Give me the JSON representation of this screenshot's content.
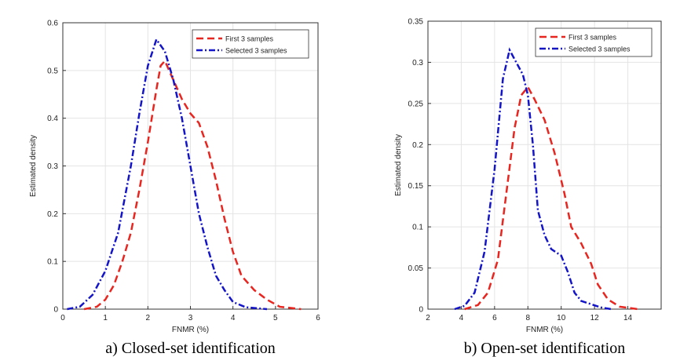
{
  "chart_data": [
    {
      "type": "line",
      "xlabel": "FNMR (%)",
      "ylabel": "Estimated density",
      "caption": "a) Closed-set identification",
      "xlim": [
        0,
        6
      ],
      "xticks": [
        0,
        1,
        2,
        3,
        4,
        5,
        6
      ],
      "ylim": [
        0,
        0.6
      ],
      "yticks": [
        0,
        0.1,
        0.2,
        0.3,
        0.4,
        0.5,
        0.6
      ],
      "grid": true,
      "legend": "upper-right",
      "series": [
        {
          "name": "First 3 samples",
          "color": "#e8251f",
          "dash": "dashed",
          "x": [
            0.5,
            0.8,
            1.0,
            1.2,
            1.4,
            1.6,
            1.8,
            2.0,
            2.2,
            2.3,
            2.4,
            2.6,
            2.8,
            3.0,
            3.2,
            3.4,
            3.6,
            3.8,
            4.0,
            4.2,
            4.5,
            4.8,
            5.1,
            5.6
          ],
          "values": [
            0,
            0.005,
            0.02,
            0.05,
            0.1,
            0.16,
            0.25,
            0.35,
            0.46,
            0.51,
            0.52,
            0.48,
            0.44,
            0.41,
            0.39,
            0.34,
            0.27,
            0.19,
            0.12,
            0.07,
            0.04,
            0.02,
            0.005,
            0
          ]
        },
        {
          "name": "Selected 3 samples",
          "color": "#1414c8",
          "dash": "dashdot",
          "x": [
            0.1,
            0.4,
            0.7,
            1.0,
            1.3,
            1.6,
            1.8,
            2.0,
            2.2,
            2.4,
            2.6,
            2.8,
            3.0,
            3.2,
            3.4,
            3.6,
            3.8,
            4.0,
            4.3,
            4.8
          ],
          "values": [
            0,
            0.005,
            0.03,
            0.08,
            0.16,
            0.3,
            0.41,
            0.51,
            0.565,
            0.54,
            0.48,
            0.4,
            0.3,
            0.2,
            0.13,
            0.07,
            0.04,
            0.015,
            0.004,
            0
          ]
        }
      ]
    },
    {
      "type": "line",
      "xlabel": "FNMR (%)",
      "ylabel": "Estimated density",
      "caption": "b) Open-set identification",
      "xlim": [
        2,
        16
      ],
      "xticks": [
        2,
        4,
        6,
        8,
        10,
        12,
        14
      ],
      "ylim": [
        0,
        0.35
      ],
      "yticks": [
        0,
        0.05,
        0.1,
        0.15,
        0.2,
        0.25,
        0.3,
        0.35
      ],
      "grid": true,
      "legend": "upper-right",
      "series": [
        {
          "name": "First 3 samples",
          "color": "#e8251f",
          "dash": "dashed",
          "x": [
            4.2,
            5,
            5.6,
            6.2,
            6.7,
            7.2,
            7.6,
            8.0,
            8.4,
            9.0,
            9.6,
            10.2,
            10.6,
            11.2,
            11.8,
            12.2,
            12.8,
            13.5,
            14.6
          ],
          "values": [
            0,
            0.005,
            0.02,
            0.06,
            0.14,
            0.22,
            0.26,
            0.27,
            0.255,
            0.23,
            0.19,
            0.14,
            0.1,
            0.08,
            0.055,
            0.03,
            0.012,
            0.003,
            0
          ]
        },
        {
          "name": "Selected 3 samples",
          "color": "#1414c8",
          "dash": "dashdot",
          "x": [
            3.6,
            4.2,
            4.8,
            5.4,
            6.0,
            6.5,
            6.9,
            7.3,
            7.7,
            8.0,
            8.3,
            8.6,
            9.0,
            9.4,
            10.0,
            10.4,
            10.8,
            11.2,
            11.8,
            12.4,
            13.0
          ],
          "values": [
            0,
            0.004,
            0.02,
            0.07,
            0.17,
            0.28,
            0.315,
            0.3,
            0.285,
            0.26,
            0.2,
            0.12,
            0.09,
            0.073,
            0.065,
            0.045,
            0.02,
            0.01,
            0.006,
            0.002,
            0
          ]
        }
      ]
    }
  ]
}
